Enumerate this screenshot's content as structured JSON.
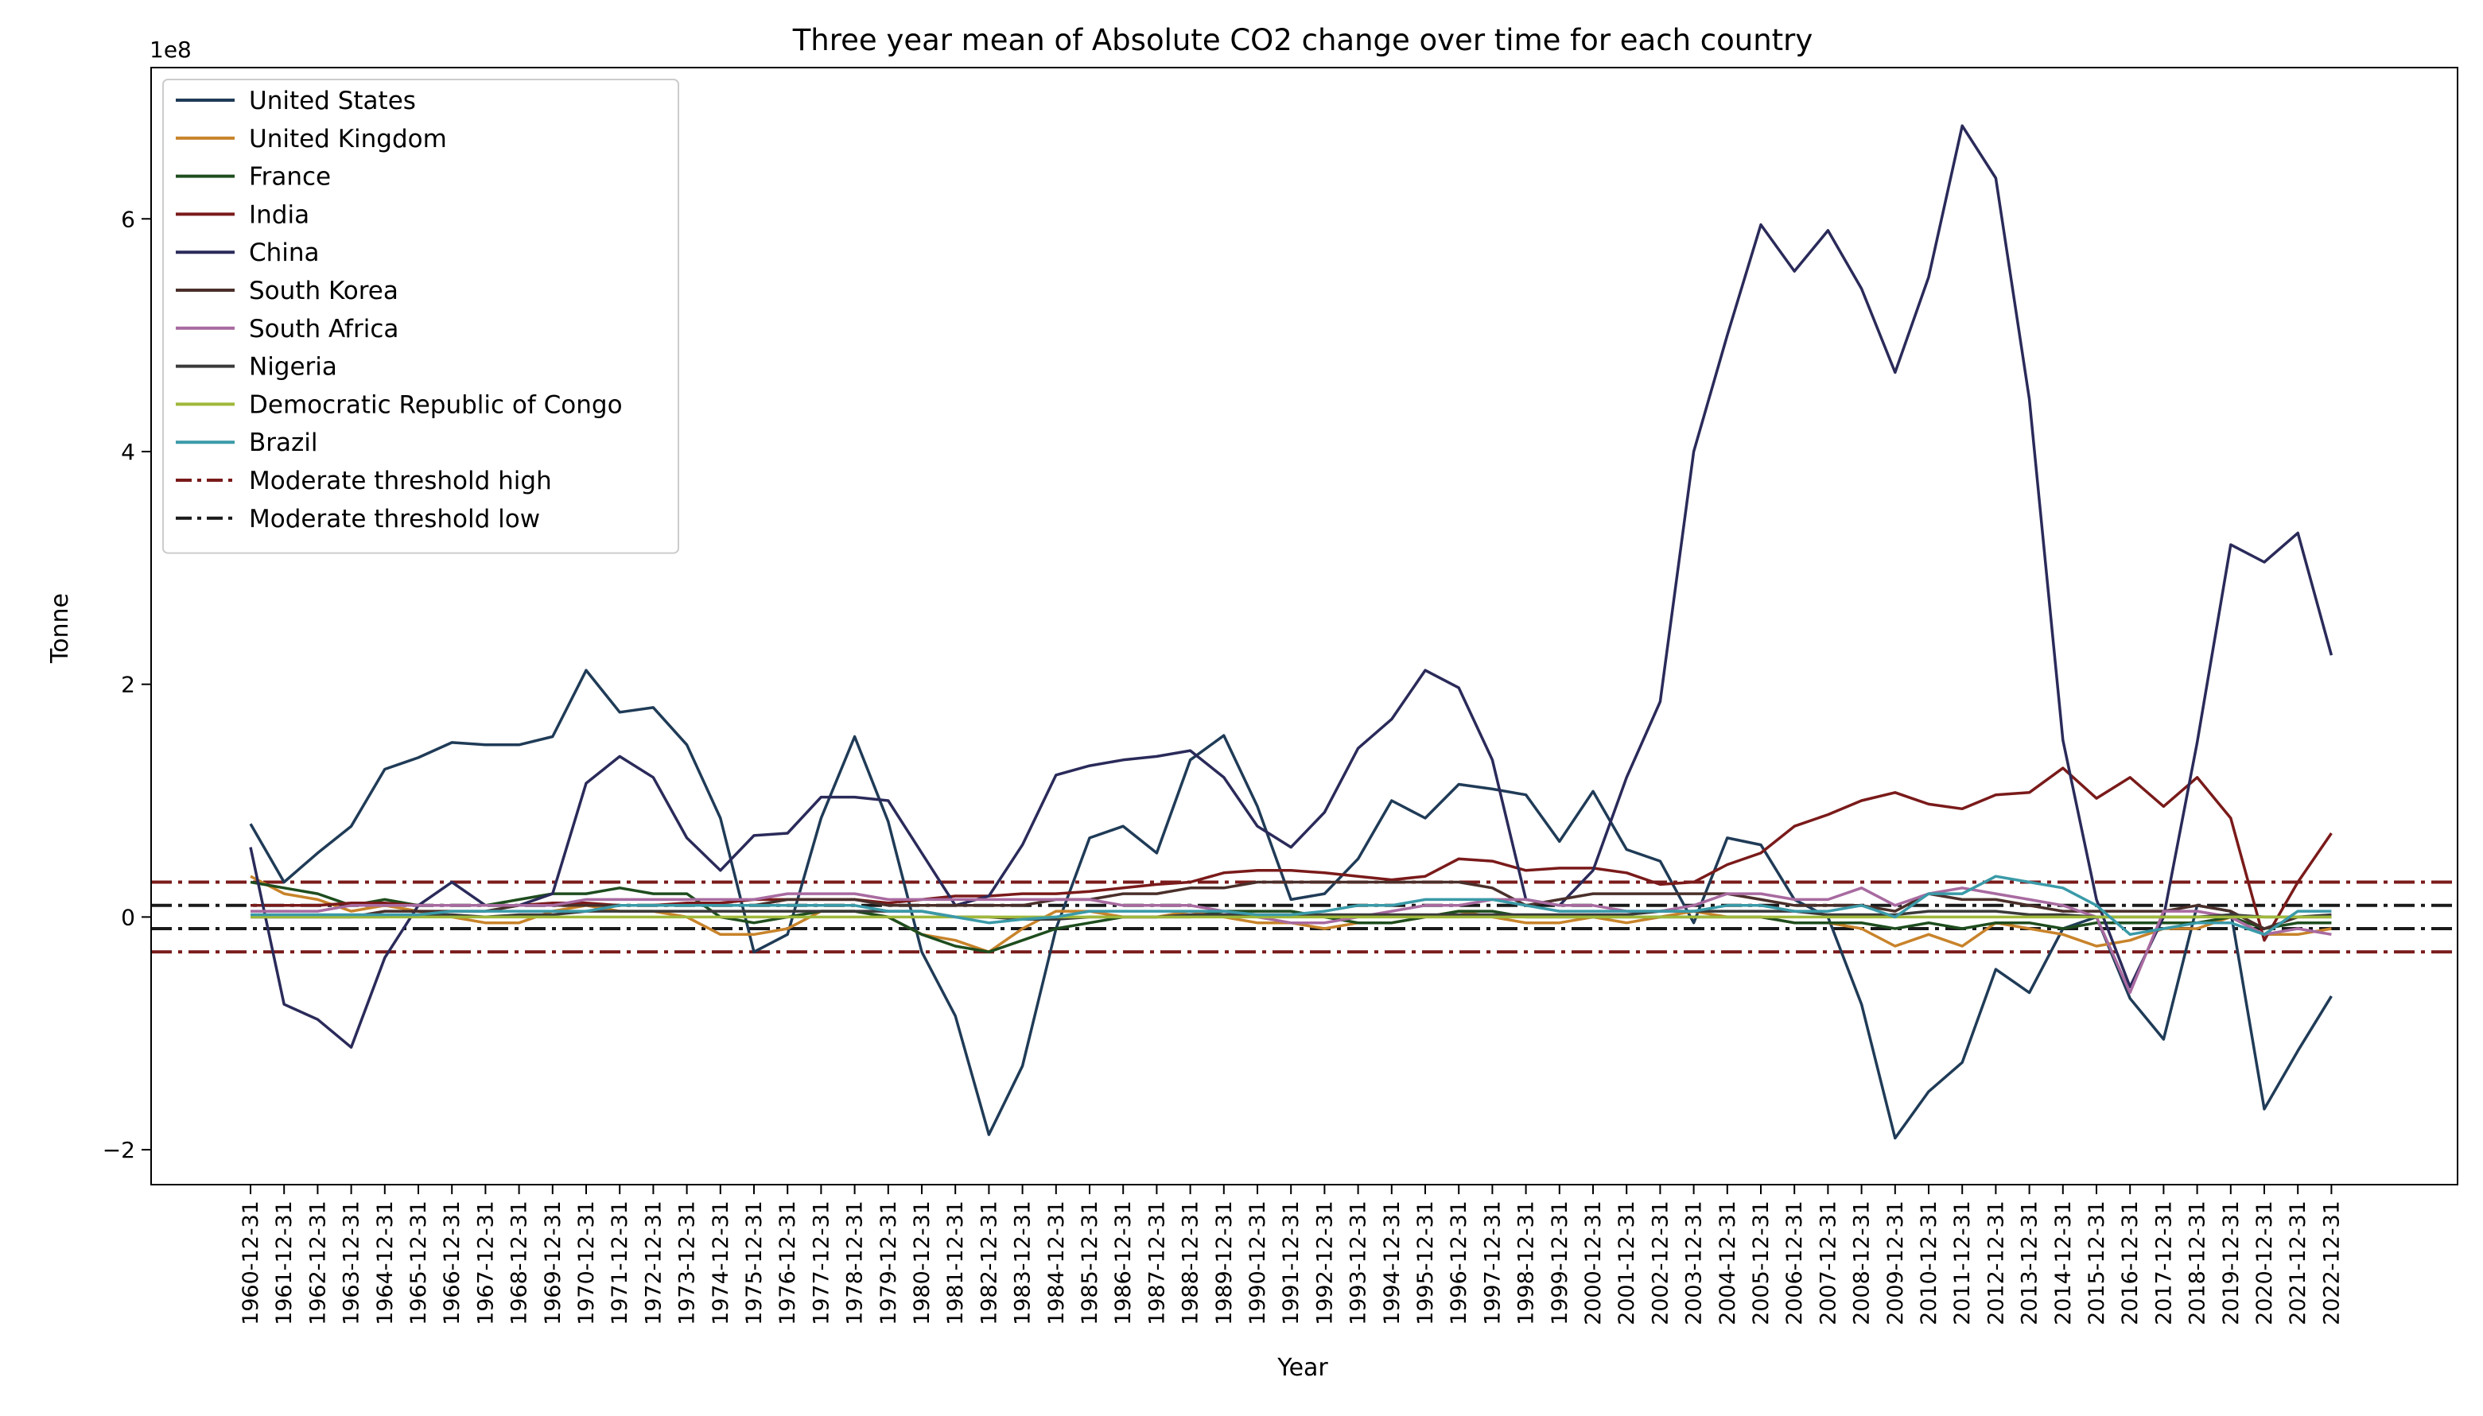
{
  "chart_data": {
    "type": "line",
    "title": "Three year mean of Absolute CO2 change over time for each country",
    "xlabel": "Year",
    "ylabel": "Tonne",
    "y_offset_label": "1e8",
    "y_unit_multiplier": 100000000,
    "ylim": [
      -2.3,
      7.3
    ],
    "yticks": [
      -2,
      0,
      2,
      4,
      6
    ],
    "ytick_labels": [
      "−2",
      "0",
      "2",
      "4",
      "6"
    ],
    "x": [
      "1960-12-31",
      "1961-12-31",
      "1962-12-31",
      "1963-12-31",
      "1964-12-31",
      "1965-12-31",
      "1966-12-31",
      "1967-12-31",
      "1968-12-31",
      "1969-12-31",
      "1970-12-31",
      "1971-12-31",
      "1972-12-31",
      "1973-12-31",
      "1974-12-31",
      "1975-12-31",
      "1976-12-31",
      "1977-12-31",
      "1978-12-31",
      "1979-12-31",
      "1980-12-31",
      "1981-12-31",
      "1982-12-31",
      "1983-12-31",
      "1984-12-31",
      "1985-12-31",
      "1986-12-31",
      "1987-12-31",
      "1988-12-31",
      "1989-12-31",
      "1990-12-31",
      "1991-12-31",
      "1992-12-31",
      "1993-12-31",
      "1994-12-31",
      "1995-12-31",
      "1996-12-31",
      "1997-12-31",
      "1998-12-31",
      "1999-12-31",
      "2000-12-31",
      "2001-12-31",
      "2002-12-31",
      "2003-12-31",
      "2004-12-31",
      "2005-12-31",
      "2006-12-31",
      "2007-12-31",
      "2008-12-31",
      "2009-12-31",
      "2010-12-31",
      "2011-12-31",
      "2012-12-31",
      "2013-12-31",
      "2014-12-31",
      "2015-12-31",
      "2016-12-31",
      "2017-12-31",
      "2018-12-31",
      "2019-12-31",
      "2020-12-31",
      "2021-12-31",
      "2022-12-31"
    ],
    "series": [
      {
        "name": "United States",
        "color": "#1f3b57",
        "values": [
          0.8,
          0.3,
          0.55,
          0.78,
          1.27,
          1.37,
          1.5,
          1.48,
          1.48,
          1.55,
          2.12,
          1.76,
          1.8,
          1.48,
          0.85,
          -0.3,
          -0.15,
          0.85,
          1.55,
          0.82,
          -0.3,
          -0.85,
          -1.87,
          -1.28,
          -0.1,
          0.68,
          0.78,
          0.55,
          1.35,
          1.56,
          0.95,
          0.15,
          0.2,
          0.5,
          1.0,
          0.85,
          1.14,
          1.1,
          1.05,
          0.65,
          1.08,
          0.58,
          0.48,
          -0.05,
          0.68,
          0.62,
          0.15,
          0.0,
          -0.75,
          -1.9,
          -1.5,
          -1.25,
          -0.45,
          -0.65,
          -0.1,
          0.0,
          -0.7,
          -1.05,
          0.1,
          0.05,
          -1.65,
          -1.15,
          -0.68
        ]
      },
      {
        "name": "United Kingdom",
        "color": "#c8832a",
        "values": [
          0.35,
          0.2,
          0.15,
          0.05,
          0.1,
          0.05,
          0.0,
          -0.05,
          -0.05,
          0.05,
          0.1,
          0.05,
          0.05,
          0.0,
          -0.15,
          -0.15,
          -0.1,
          0.05,
          0.05,
          0.0,
          -0.15,
          -0.2,
          -0.3,
          -0.1,
          0.05,
          0.05,
          0.0,
          0.0,
          0.05,
          0.0,
          -0.05,
          -0.05,
          -0.1,
          -0.05,
          -0.05,
          0.0,
          0.05,
          0.0,
          -0.05,
          -0.05,
          0.0,
          -0.05,
          0.0,
          0.05,
          0.0,
          0.0,
          -0.05,
          -0.05,
          -0.1,
          -0.25,
          -0.15,
          -0.25,
          -0.05,
          -0.1,
          -0.15,
          -0.25,
          -0.2,
          -0.1,
          -0.1,
          0.0,
          -0.15,
          -0.15,
          -0.1
        ]
      },
      {
        "name": "France",
        "color": "#1e4d1e",
        "values": [
          0.3,
          0.25,
          0.2,
          0.1,
          0.15,
          0.1,
          0.1,
          0.1,
          0.15,
          0.2,
          0.2,
          0.25,
          0.2,
          0.2,
          0.0,
          -0.05,
          0.0,
          0.05,
          0.05,
          0.0,
          -0.15,
          -0.25,
          -0.3,
          -0.2,
          -0.1,
          -0.05,
          0.0,
          0.0,
          0.0,
          0.05,
          0.05,
          0.05,
          0.0,
          -0.05,
          -0.05,
          0.0,
          0.05,
          0.05,
          0.0,
          0.0,
          0.0,
          0.0,
          0.0,
          0.0,
          0.0,
          0.0,
          -0.05,
          -0.05,
          -0.05,
          -0.1,
          -0.05,
          -0.1,
          -0.05,
          -0.05,
          -0.1,
          -0.05,
          -0.05,
          -0.05,
          -0.05,
          0.0,
          -0.1,
          -0.05,
          -0.05
        ]
      },
      {
        "name": "India",
        "color": "#7a1a1a",
        "values": [
          0.1,
          0.1,
          0.1,
          0.12,
          0.12,
          0.1,
          0.1,
          0.1,
          0.1,
          0.12,
          0.12,
          0.1,
          0.1,
          0.12,
          0.12,
          0.15,
          0.15,
          0.15,
          0.15,
          0.12,
          0.15,
          0.18,
          0.18,
          0.2,
          0.2,
          0.22,
          0.25,
          0.28,
          0.3,
          0.38,
          0.4,
          0.4,
          0.38,
          0.35,
          0.32,
          0.35,
          0.5,
          0.48,
          0.4,
          0.42,
          0.42,
          0.38,
          0.28,
          0.3,
          0.45,
          0.55,
          0.78,
          0.88,
          1.0,
          1.07,
          0.97,
          0.93,
          1.05,
          1.07,
          1.28,
          1.02,
          1.2,
          0.95,
          1.2,
          0.85,
          -0.2,
          0.3,
          0.72
        ]
      },
      {
        "name": "China",
        "color": "#2a2a5a",
        "values": [
          0.6,
          -0.75,
          -0.88,
          -1.12,
          -0.35,
          0.1,
          0.3,
          0.1,
          0.1,
          0.2,
          1.15,
          1.38,
          1.2,
          0.68,
          0.4,
          0.7,
          0.72,
          1.03,
          1.03,
          1.0,
          0.55,
          0.1,
          0.18,
          0.62,
          1.22,
          1.3,
          1.35,
          1.38,
          1.43,
          1.2,
          0.78,
          0.6,
          0.9,
          1.45,
          1.7,
          2.12,
          1.97,
          1.35,
          0.15,
          0.1,
          0.4,
          1.2,
          1.85,
          4.0,
          5.0,
          5.95,
          5.55,
          5.9,
          5.4,
          4.68,
          5.5,
          6.8,
          6.35,
          4.45,
          1.52,
          0.15,
          -0.6,
          0.0,
          1.5,
          3.2,
          3.05,
          3.3,
          2.25
        ]
      },
      {
        "name": "South Korea",
        "color": "#4a2f2a",
        "values": [
          0.0,
          0.0,
          0.0,
          0.0,
          0.05,
          0.05,
          0.05,
          0.05,
          0.1,
          0.1,
          0.1,
          0.1,
          0.1,
          0.1,
          0.1,
          0.1,
          0.15,
          0.15,
          0.15,
          0.1,
          0.1,
          0.1,
          0.1,
          0.1,
          0.15,
          0.15,
          0.2,
          0.2,
          0.25,
          0.25,
          0.3,
          0.3,
          0.3,
          0.3,
          0.3,
          0.3,
          0.3,
          0.25,
          0.1,
          0.15,
          0.2,
          0.2,
          0.2,
          0.2,
          0.2,
          0.15,
          0.1,
          0.1,
          0.1,
          0.05,
          0.2,
          0.15,
          0.15,
          0.1,
          0.05,
          0.05,
          0.05,
          0.05,
          0.1,
          0.05,
          -0.1,
          0.0,
          0.0
        ]
      },
      {
        "name": "South Africa",
        "color": "#a86aa0",
        "values": [
          0.05,
          0.05,
          0.05,
          0.1,
          0.1,
          0.1,
          0.1,
          0.1,
          0.1,
          0.1,
          0.15,
          0.15,
          0.15,
          0.15,
          0.15,
          0.15,
          0.2,
          0.2,
          0.2,
          0.15,
          0.15,
          0.15,
          0.15,
          0.15,
          0.15,
          0.15,
          0.1,
          0.1,
          0.1,
          0.05,
          0.0,
          -0.05,
          -0.05,
          0.0,
          0.05,
          0.1,
          0.1,
          0.15,
          0.15,
          0.1,
          0.1,
          0.05,
          0.05,
          0.1,
          0.2,
          0.2,
          0.15,
          0.15,
          0.25,
          0.1,
          0.2,
          0.25,
          0.2,
          0.15,
          0.1,
          0.0,
          -0.65,
          0.05,
          0.05,
          0.0,
          -0.15,
          -0.1,
          -0.15
        ]
      },
      {
        "name": "Nigeria",
        "color": "#3a3a3a",
        "values": [
          0.0,
          0.0,
          0.0,
          0.0,
          0.0,
          0.02,
          0.02,
          0.0,
          0.02,
          0.02,
          0.05,
          0.05,
          0.05,
          0.05,
          0.05,
          0.05,
          0.05,
          0.05,
          0.05,
          0.05,
          0.05,
          0.0,
          0.0,
          -0.02,
          -0.02,
          0.0,
          0.0,
          0.0,
          0.02,
          0.02,
          0.02,
          0.02,
          0.02,
          0.02,
          0.02,
          0.02,
          0.02,
          0.02,
          0.02,
          0.02,
          0.02,
          0.02,
          0.05,
          0.05,
          0.05,
          0.05,
          0.05,
          0.02,
          0.02,
          0.02,
          0.05,
          0.05,
          0.05,
          0.02,
          0.02,
          0.0,
          0.0,
          0.0,
          0.0,
          0.02,
          0.0,
          0.0,
          0.02
        ]
      },
      {
        "name": "Democratic Republic of Congo",
        "color": "#9fb83a",
        "values": [
          0.0,
          0.0,
          0.0,
          0.0,
          0.0,
          0.0,
          0.0,
          0.0,
          0.0,
          0.0,
          0.0,
          0.0,
          0.0,
          0.0,
          0.0,
          0.0,
          0.0,
          0.0,
          0.0,
          0.0,
          0.0,
          0.0,
          0.0,
          0.0,
          0.0,
          0.0,
          0.0,
          0.0,
          0.0,
          0.0,
          0.0,
          0.0,
          0.0,
          0.0,
          0.0,
          0.0,
          0.0,
          0.0,
          0.0,
          0.0,
          0.0,
          0.0,
          0.0,
          0.0,
          0.0,
          0.0,
          0.0,
          0.0,
          0.0,
          0.0,
          0.0,
          0.0,
          0.0,
          0.0,
          0.0,
          0.0,
          0.0,
          0.0,
          0.0,
          0.0,
          0.0,
          0.0,
          0.0
        ]
      },
      {
        "name": "Brazil",
        "color": "#3a9aa8",
        "values": [
          0.02,
          0.02,
          0.02,
          0.02,
          0.02,
          0.02,
          0.05,
          0.05,
          0.05,
          0.05,
          0.05,
          0.1,
          0.1,
          0.1,
          0.1,
          0.1,
          0.1,
          0.1,
          0.1,
          0.05,
          0.05,
          0.0,
          -0.05,
          -0.02,
          0.0,
          0.05,
          0.05,
          0.05,
          0.05,
          0.05,
          0.02,
          0.02,
          0.05,
          0.1,
          0.1,
          0.15,
          0.15,
          0.15,
          0.1,
          0.05,
          0.05,
          0.05,
          0.05,
          0.05,
          0.1,
          0.1,
          0.05,
          0.05,
          0.1,
          0.0,
          0.2,
          0.2,
          0.35,
          0.3,
          0.25,
          0.1,
          -0.15,
          -0.1,
          -0.05,
          -0.05,
          -0.15,
          0.05,
          0.05
        ]
      }
    ],
    "thresholds": [
      {
        "name": "Moderate threshold high",
        "color": "#7a1a1a",
        "style": "dash-dot",
        "values": [
          0.3,
          -0.3
        ]
      },
      {
        "name": "Moderate threshold low",
        "color": "#1a1a1a",
        "style": "dash-dot",
        "values": [
          0.1,
          -0.1
        ]
      }
    ],
    "legend_position": "top-left",
    "grid": false
  }
}
